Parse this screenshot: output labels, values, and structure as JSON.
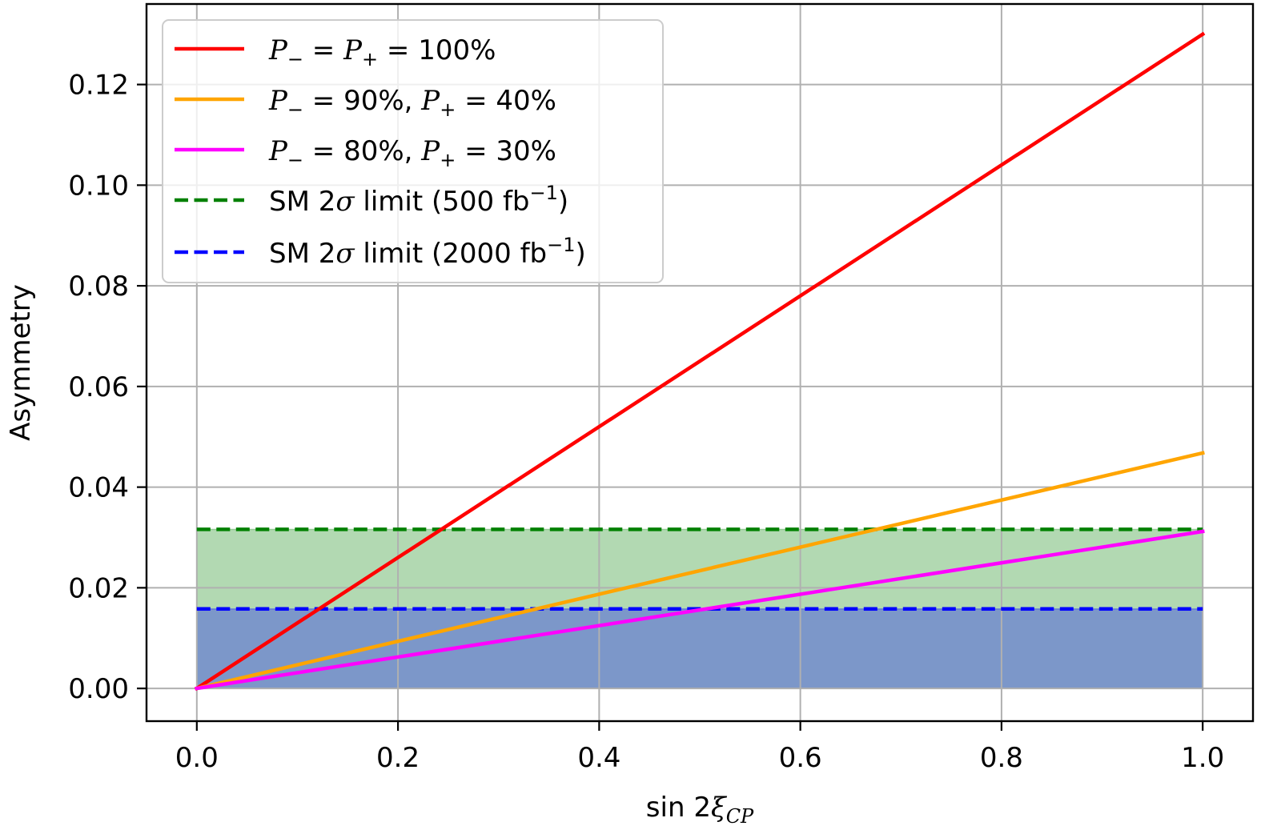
{
  "chart_data": {
    "type": "line",
    "xlabel": {
      "func": "sin 2",
      "var": "ξ",
      "sub": "CP"
    },
    "ylabel": "Asymmetry",
    "xlim": [
      -0.05,
      1.05
    ],
    "ylim": [
      -0.0065,
      0.136
    ],
    "x_ticks": [
      0.0,
      0.2,
      0.4,
      0.6,
      0.8,
      1.0
    ],
    "x_tick_labels": [
      "0.0",
      "0.2",
      "0.4",
      "0.6",
      "0.8",
      "1.0"
    ],
    "y_ticks": [
      0.0,
      0.02,
      0.04,
      0.06,
      0.08,
      0.1,
      0.12
    ],
    "y_tick_labels": [
      "0.00",
      "0.02",
      "0.04",
      "0.06",
      "0.08",
      "0.10",
      "0.12"
    ],
    "grid": true,
    "legend_placement": "upper-left",
    "series": [
      {
        "id": "p100",
        "color": "#ff0000",
        "style": "solid",
        "x": [
          0.0,
          1.0
        ],
        "y": [
          0.0,
          0.13
        ],
        "legend": [
          {
            "t": "P",
            "it": true
          },
          {
            "t": "−",
            "sub": true
          },
          {
            "t": " = "
          },
          {
            "t": "P",
            "it": true
          },
          {
            "t": "+",
            "sub": true
          },
          {
            "t": " = 100%"
          }
        ]
      },
      {
        "id": "p90",
        "color": "#ffa500",
        "style": "solid",
        "x": [
          0.0,
          1.0
        ],
        "y": [
          0.0,
          0.0468
        ],
        "legend": [
          {
            "t": "P",
            "it": true
          },
          {
            "t": "−",
            "sub": true
          },
          {
            "t": " = 90%, "
          },
          {
            "t": "P",
            "it": true
          },
          {
            "t": "+",
            "sub": true
          },
          {
            "t": " = 40%"
          }
        ]
      },
      {
        "id": "p80",
        "color": "#ff00ff",
        "style": "solid",
        "x": [
          0.0,
          1.0
        ],
        "y": [
          0.0,
          0.0312
        ],
        "legend": [
          {
            "t": "P",
            "it": true
          },
          {
            "t": "−",
            "sub": true
          },
          {
            "t": " = 80%, "
          },
          {
            "t": "P",
            "it": true
          },
          {
            "t": "+",
            "sub": true
          },
          {
            "t": " = 30%"
          }
        ]
      },
      {
        "id": "sm500",
        "color": "#008000",
        "fill": "#008000",
        "style": "dashed",
        "x": [
          0.0,
          1.0
        ],
        "y": [
          0.0316,
          0.0316
        ],
        "legend": [
          {
            "t": "SM 2"
          },
          {
            "t": "σ",
            "it": true
          },
          {
            "t": " limit (500 fb"
          },
          {
            "t": "−1",
            "sup": true
          },
          {
            "t": ")"
          }
        ]
      },
      {
        "id": "sm2000",
        "color": "#0000ff",
        "fill": "#0000ff",
        "style": "dashed",
        "x": [
          0.0,
          1.0
        ],
        "y": [
          0.0158,
          0.0158
        ],
        "legend": [
          {
            "t": "SM 2"
          },
          {
            "t": "σ",
            "it": true
          },
          {
            "t": " limit (2000 fb"
          },
          {
            "t": "−1",
            "sup": true
          },
          {
            "t": ")"
          }
        ]
      }
    ],
    "bands": [
      {
        "series": "sm500",
        "from": 0.0,
        "to": 1.0,
        "y0": 0.0,
        "y1": 0.0316,
        "color": "#008000",
        "opacity": 0.3
      },
      {
        "series": "sm2000",
        "from": 0.0,
        "to": 1.0,
        "y0": 0.0,
        "y1": 0.0158,
        "color": "#0000ff",
        "opacity": 0.3
      }
    ]
  }
}
